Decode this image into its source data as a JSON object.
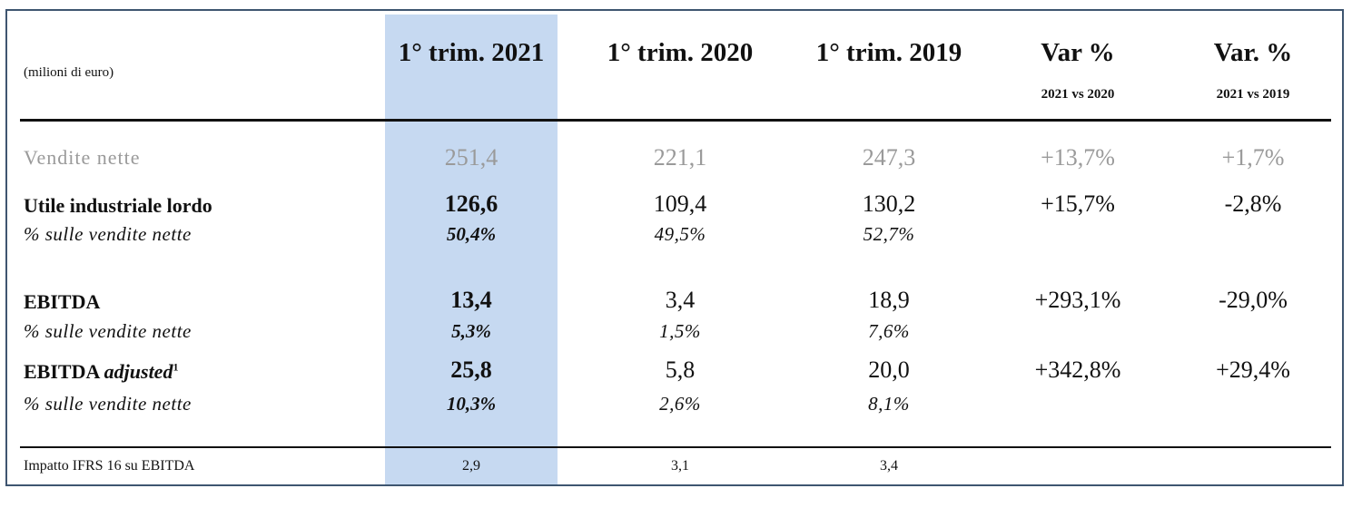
{
  "unit": "(milioni di euro)",
  "columns": [
    {
      "title": "1° trim. 2021",
      "sub": ""
    },
    {
      "title": "1° trim. 2020",
      "sub": ""
    },
    {
      "title": "1° trim. 2019",
      "sub": ""
    },
    {
      "title": "Var %",
      "sub": "2021 vs 2020"
    },
    {
      "title": "Var. %",
      "sub": "2021 vs 2019"
    }
  ],
  "rows": {
    "vendite": {
      "label": "Vendite nette",
      "values": [
        "251,4",
        "221,1",
        "247,3",
        "+13,7%",
        "+1,7%"
      ]
    },
    "utile": {
      "label": "Utile industriale lordo",
      "values": [
        "126,6",
        "109,4",
        "130,2",
        "+15,7%",
        "-2,8%"
      ]
    },
    "utile_pct": {
      "label": "% sulle vendite nette",
      "values": [
        "50,4%",
        "49,5%",
        "52,7%"
      ]
    },
    "ebitda": {
      "label": "EBITDA",
      "values": [
        "13,4",
        "3,4",
        "18,9",
        "+293,1%",
        "-29,0%"
      ]
    },
    "ebitda_pct": {
      "label": "% sulle vendite nette",
      "values": [
        "5,3%",
        "1,5%",
        "7,6%"
      ]
    },
    "ebitda_adj": {
      "label_main": "EBITDA ",
      "label_italic": "adjusted",
      "footnote": "1",
      "values": [
        "25,8",
        "5,8",
        "20,0",
        "+342,8%",
        "+29,4%"
      ]
    },
    "ebitda_adj_pct": {
      "label": "% sulle vendite nette",
      "values": [
        "10,3%",
        "2,6%",
        "8,1%"
      ]
    },
    "ifrs": {
      "label": "Impatto IFRS 16 su EBITDA",
      "values": [
        "2,9",
        "3,1",
        "3,4"
      ]
    }
  }
}
